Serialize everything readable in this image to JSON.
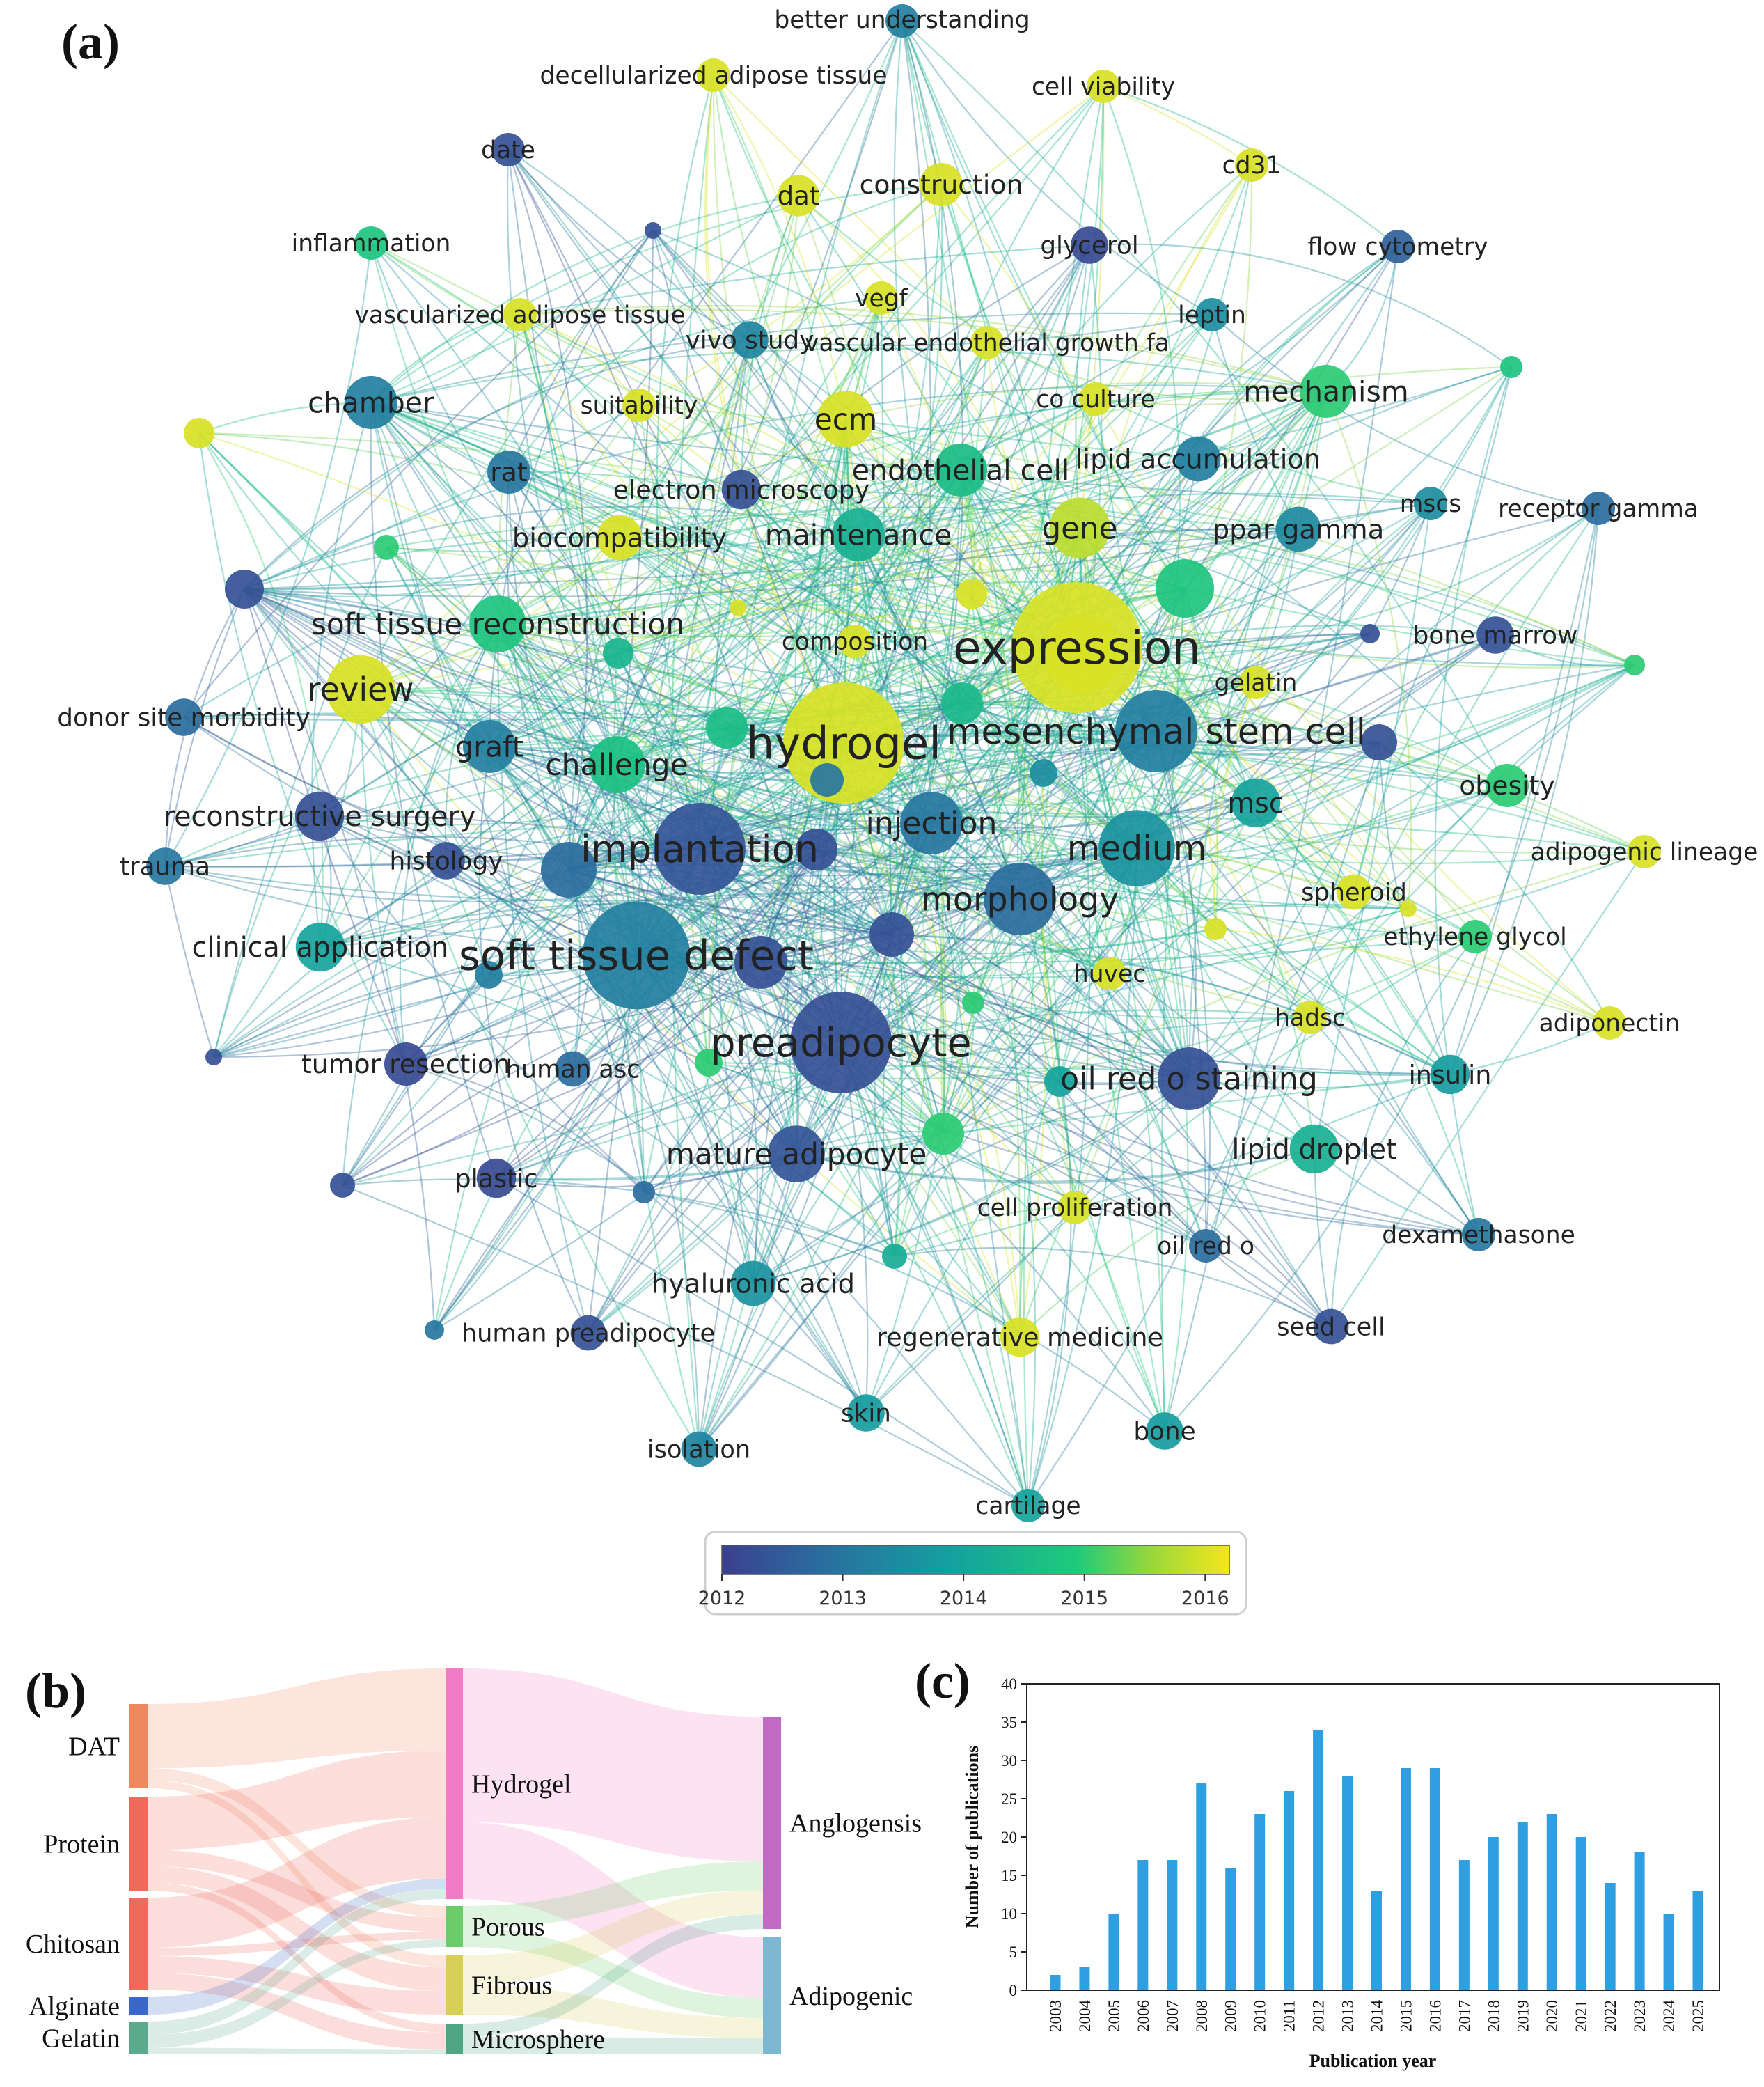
{
  "figure": {
    "panel_a_label": "(a)",
    "panel_b_label": "(b)",
    "panel_c_label": "(c)"
  },
  "colors": {
    "year_gradient": [
      "#3b3f8f",
      "#2a6e9f",
      "#14a0a0",
      "#1fca7a",
      "#9bd83a",
      "#f5e61b"
    ],
    "bar": "#2e9fe0",
    "sankey": {
      "DAT": "#f0885e",
      "Protein": "#f06a5c",
      "Chitosan": "#ef6a5a",
      "Alginate": "#3a68c8",
      "Gelatin": "#5caa8e",
      "Hydrogel": "#f57ac6",
      "Porous": "#6dcc6a",
      "Fibrous": "#d8cf56",
      "Microsphere": "#4fa584",
      "Anglogensis": "#c06ac4",
      "Adipogenic": "#7cb8d2"
    }
  },
  "chart_data": [
    {
      "type": "network",
      "colorbar": {
        "ticks": [
          "2012",
          "2013",
          "2014",
          "2015",
          "2016"
        ],
        "range": [
          2012,
          2016.2
        ]
      },
      "nodes": [
        {
          "label": "better understanding",
          "year": 2013.2,
          "weight": 1
        },
        {
          "label": "decellularized adipose tissue",
          "year": 2016,
          "weight": 1
        },
        {
          "label": "cell viability",
          "year": 2016,
          "weight": 1
        },
        {
          "label": "date",
          "year": 2012.3,
          "weight": 1
        },
        {
          "label": "dat",
          "year": 2016,
          "weight": 1.4
        },
        {
          "label": "construction",
          "year": 2016,
          "weight": 1.5
        },
        {
          "label": "cd31",
          "year": 2016,
          "weight": 1
        },
        {
          "label": "inflammation",
          "year": 2014.8,
          "weight": 1
        },
        {
          "label": "glycerol",
          "year": 2012.2,
          "weight": 1.2
        },
        {
          "label": "flow cytometry",
          "year": 2012.6,
          "weight": 1
        },
        {
          "label": "vegf",
          "year": 2016,
          "weight": 1
        },
        {
          "label": "vascularized adipose tissue",
          "year": 2016,
          "weight": 1
        },
        {
          "label": "vivo study",
          "year": 2013.3,
          "weight": 1.2
        },
        {
          "label": "vascular endothelial growth fa",
          "year": 2016,
          "weight": 1
        },
        {
          "label": "leptin",
          "year": 2013.5,
          "weight": 1
        },
        {
          "label": "chamber",
          "year": 2013.2,
          "weight": 2
        },
        {
          "label": "suitability",
          "year": 2016,
          "weight": 1
        },
        {
          "label": "ecm",
          "year": 2016,
          "weight": 2.2
        },
        {
          "label": "co culture",
          "year": 2016,
          "weight": 1
        },
        {
          "label": "mechanism",
          "year": 2015,
          "weight": 2
        },
        {
          "label": "rat",
          "year": 2013,
          "weight": 1.5
        },
        {
          "label": "electron microscopy",
          "year": 2012.3,
          "weight": 1.3
        },
        {
          "label": "endothelial cell",
          "year": 2014.6,
          "weight": 2
        },
        {
          "label": "lipid accumulation",
          "year": 2013.2,
          "weight": 1.6
        },
        {
          "label": "mscs",
          "year": 2013.5,
          "weight": 1
        },
        {
          "label": "receptor gamma",
          "year": 2012.8,
          "weight": 1
        },
        {
          "label": "biocompatibility",
          "year": 2016,
          "weight": 1.6
        },
        {
          "label": "maintenance",
          "year": 2014.3,
          "weight": 2
        },
        {
          "label": "gene",
          "year": 2015.8,
          "weight": 2.4
        },
        {
          "label": "ppar gamma",
          "year": 2013.4,
          "weight": 1.6
        },
        {
          "label": "soft tissue reconstruction",
          "year": 2014.8,
          "weight": 2.2
        },
        {
          "label": "bone marrow",
          "year": 2012.3,
          "weight": 1.2
        },
        {
          "label": "composition",
          "year": 2016,
          "weight": 1
        },
        {
          "label": "expression",
          "year": 2016,
          "weight": 6
        },
        {
          "label": "review",
          "year": 2016,
          "weight": 2.8
        },
        {
          "label": "gelatin",
          "year": 2016,
          "weight": 1
        },
        {
          "label": "donor site morbidity",
          "year": 2012.8,
          "weight": 1.2
        },
        {
          "label": "hydrogel",
          "year": 2016,
          "weight": 5.5
        },
        {
          "label": "mesenchymal stem cell",
          "year": 2013.2,
          "weight": 3.5
        },
        {
          "label": "graft",
          "year": 2013.2,
          "weight": 2
        },
        {
          "label": "challenge",
          "year": 2014.7,
          "weight": 2.2
        },
        {
          "label": "obesity",
          "year": 2015,
          "weight": 1.5
        },
        {
          "label": "reconstructive surgery",
          "year": 2012.3,
          "weight": 1.8
        },
        {
          "label": "msc",
          "year": 2014,
          "weight": 1.8
        },
        {
          "label": "injection",
          "year": 2013,
          "weight": 2.5
        },
        {
          "label": "adipogenic lineage",
          "year": 2016,
          "weight": 1
        },
        {
          "label": "trauma",
          "year": 2013,
          "weight": 1.2
        },
        {
          "label": "histology",
          "year": 2012.3,
          "weight": 1.2
        },
        {
          "label": "implantation",
          "year": 2012.4,
          "weight": 4
        },
        {
          "label": "medium",
          "year": 2013.6,
          "weight": 3.2
        },
        {
          "label": "morphology",
          "year": 2012.8,
          "weight": 3
        },
        {
          "label": "spheroid",
          "year": 2016,
          "weight": 1.1
        },
        {
          "label": "ethylene glycol",
          "year": 2015,
          "weight": 1
        },
        {
          "label": "clinical application",
          "year": 2014,
          "weight": 1.8
        },
        {
          "label": "soft tissue defect",
          "year": 2013.2,
          "weight": 4.8
        },
        {
          "label": "huvec",
          "year": 2016,
          "weight": 1
        },
        {
          "label": "hadsc",
          "year": 2016,
          "weight": 1
        },
        {
          "label": "adiponectin",
          "year": 2016,
          "weight": 1
        },
        {
          "label": "preadipocyte",
          "year": 2012.3,
          "weight": 4.5
        },
        {
          "label": "tumor resection",
          "year": 2012.2,
          "weight": 1.5
        },
        {
          "label": "human asc",
          "year": 2012.8,
          "weight": 1.1
        },
        {
          "label": "oil red o staining",
          "year": 2012.3,
          "weight": 2.5
        },
        {
          "label": "insulin",
          "year": 2013.8,
          "weight": 1.3
        },
        {
          "label": "lipid droplet",
          "year": 2014.3,
          "weight": 1.8
        },
        {
          "label": "mature adipocyte",
          "year": 2012.4,
          "weight": 2.2
        },
        {
          "label": "plastic",
          "year": 2012.2,
          "weight": 1.3
        },
        {
          "label": "cell proliferation",
          "year": 2016,
          "weight": 1
        },
        {
          "label": "dexamethasone",
          "year": 2013,
          "weight": 1
        },
        {
          "label": "oil red o",
          "year": 2012.8,
          "weight": 1
        },
        {
          "label": "hyaluronic acid",
          "year": 2013.6,
          "weight": 1.6
        },
        {
          "label": "regenerative medicine",
          "year": 2016,
          "weight": 1.3
        },
        {
          "label": "seed cell",
          "year": 2012.3,
          "weight": 1.1
        },
        {
          "label": "human preadipocyte",
          "year": 2012.3,
          "weight": 1.1
        },
        {
          "label": "skin",
          "year": 2013.8,
          "weight": 1.2
        },
        {
          "label": "bone",
          "year": 2013.8,
          "weight": 1.2
        },
        {
          "label": "isolation",
          "year": 2013.3,
          "weight": 1.1
        },
        {
          "label": "cartilage",
          "year": 2014,
          "weight": 1
        }
      ]
    },
    {
      "type": "sankey",
      "sources": [
        "DAT",
        "Protein",
        "Chitosan",
        "Alginate",
        "Gelatin"
      ],
      "forms": [
        "Hydrogel",
        "Porous",
        "Fibrous",
        "Microsphere"
      ],
      "outcomes": [
        "Anglogensis",
        "Adipogenic"
      ],
      "flows_material_to_form": [
        {
          "from": "DAT",
          "to": "Hydrogel",
          "value": 16
        },
        {
          "from": "DAT",
          "to": "Porous",
          "value": 3
        },
        {
          "from": "DAT",
          "to": "Fibrous",
          "value": 2
        },
        {
          "from": "Protein",
          "to": "Hydrogel",
          "value": 13
        },
        {
          "from": "Protein",
          "to": "Porous",
          "value": 4
        },
        {
          "from": "Protein",
          "to": "Fibrous",
          "value": 4
        },
        {
          "from": "Protein",
          "to": "Microsphere",
          "value": 2
        },
        {
          "from": "Chitosan",
          "to": "Hydrogel",
          "value": 12
        },
        {
          "from": "Chitosan",
          "to": "Porous",
          "value": 2
        },
        {
          "from": "Chitosan",
          "to": "Fibrous",
          "value": 4
        },
        {
          "from": "Chitosan",
          "to": "Microsphere",
          "value": 4
        },
        {
          "from": "Alginate",
          "to": "Hydrogel",
          "value": 2
        },
        {
          "from": "Gelatin",
          "to": "Hydrogel",
          "value": 2
        },
        {
          "from": "Gelatin",
          "to": "Porous",
          "value": 2
        },
        {
          "from": "Gelatin",
          "to": "Microsphere",
          "value": 1
        }
      ],
      "flows_form_to_outcome": [
        {
          "from": "Hydrogel",
          "to": "Anglogensis",
          "value": 30
        },
        {
          "from": "Hydrogel",
          "to": "Adipogenic",
          "value": 15
        },
        {
          "from": "Porous",
          "to": "Anglogensis",
          "value": 6
        },
        {
          "from": "Porous",
          "to": "Adipogenic",
          "value": 5
        },
        {
          "from": "Fibrous",
          "to": "Anglogensis",
          "value": 5
        },
        {
          "from": "Fibrous",
          "to": "Adipogenic",
          "value": 5
        },
        {
          "from": "Microsphere",
          "to": "Anglogensis",
          "value": 3
        },
        {
          "from": "Microsphere",
          "to": "Adipogenic",
          "value": 4
        }
      ]
    },
    {
      "type": "bar",
      "categories": [
        "2003",
        "2004",
        "2005",
        "2006",
        "2007",
        "2008",
        "2009",
        "2010",
        "2011",
        "2012",
        "2013",
        "2014",
        "2015",
        "2016",
        "2017",
        "2018",
        "2019",
        "2020",
        "2021",
        "2022",
        "2023",
        "2024",
        "2025"
      ],
      "values": [
        2,
        3,
        10,
        17,
        17,
        27,
        16,
        23,
        26,
        34,
        28,
        13,
        29,
        29,
        17,
        20,
        22,
        23,
        20,
        14,
        18,
        10,
        13
      ],
      "xlabel": "Publication year",
      "ylabel": "Number of publications",
      "ylim": [
        0,
        40
      ],
      "yticks": [
        0,
        5,
        10,
        15,
        20,
        25,
        30,
        35,
        40
      ]
    }
  ]
}
